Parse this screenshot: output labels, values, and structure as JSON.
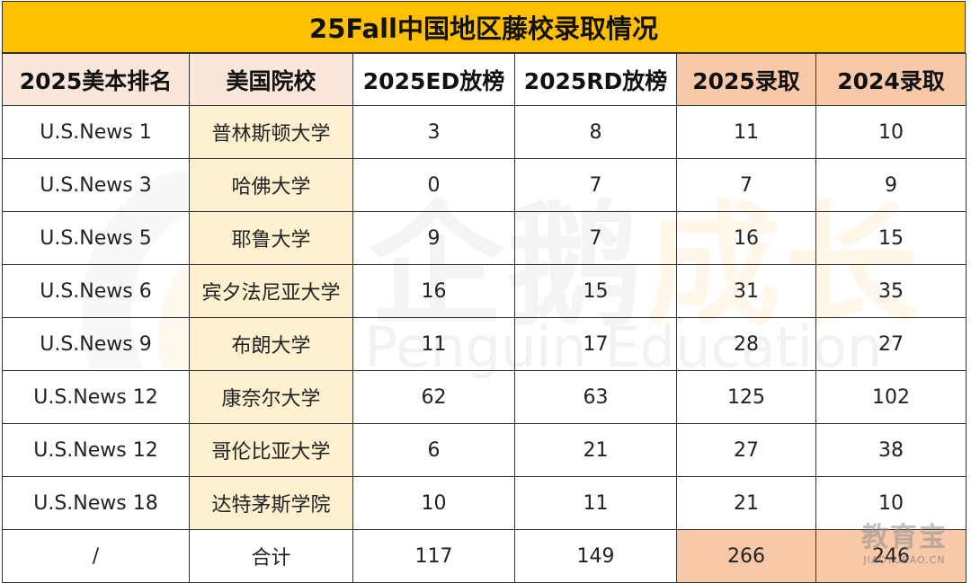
{
  "title": "25Fall中国地区藤校录取情况",
  "headers": [
    "2025美本排名",
    "美国院校",
    "2025ED放榜",
    "2025RD放榜",
    "2025录取",
    "2024录取"
  ],
  "rows": [
    {
      "rank": "U.S.News 1",
      "school": "普林斯顿大学",
      "ed": "3",
      "rd": "8",
      "adm2025": "11",
      "adm2024": "10"
    },
    {
      "rank": "U.S.News 3",
      "school": "哈佛大学",
      "ed": "0",
      "rd": "7",
      "adm2025": "7",
      "adm2024": "9"
    },
    {
      "rank": "U.S.News 5",
      "school": "耶鲁大学",
      "ed": "9",
      "rd": "7",
      "adm2025": "16",
      "adm2024": "15"
    },
    {
      "rank": "U.S.News 6",
      "school": "宾夕法尼亚大学",
      "ed": "16",
      "rd": "15",
      "adm2025": "31",
      "adm2024": "35"
    },
    {
      "rank": "U.S.News 9",
      "school": "布朗大学",
      "ed": "11",
      "rd": "17",
      "adm2025": "28",
      "adm2024": "27"
    },
    {
      "rank": "U.S.News 12",
      "school": "康奈尔大学",
      "ed": "62",
      "rd": "63",
      "adm2025": "125",
      "adm2024": "102"
    },
    {
      "rank": "U.S.News 12",
      "school": "哥伦比亚大学",
      "ed": "6",
      "rd": "21",
      "adm2025": "27",
      "adm2024": "38"
    },
    {
      "rank": "U.S.News 18",
      "school": "达特茅斯学院",
      "ed": "10",
      "rd": "11",
      "adm2025": "21",
      "adm2024": "10"
    }
  ],
  "total": {
    "rank": "/",
    "school": "合计",
    "ed": "117",
    "rd": "149",
    "adm2025": "266",
    "adm2024": "246"
  },
  "watermark": {
    "cn_a": "企鹅",
    "cn_b": "成长",
    "en": "Penguin Education"
  },
  "corner_watermark": {
    "main": "教育宝",
    "sub": "JIAOYUBAO.CN"
  },
  "colors": {
    "title_bg": "#ffc000",
    "header_highlight": "#fbe6da",
    "admission_highlight": "#f8c9a9",
    "school_col_bg": "#fff1cf"
  }
}
